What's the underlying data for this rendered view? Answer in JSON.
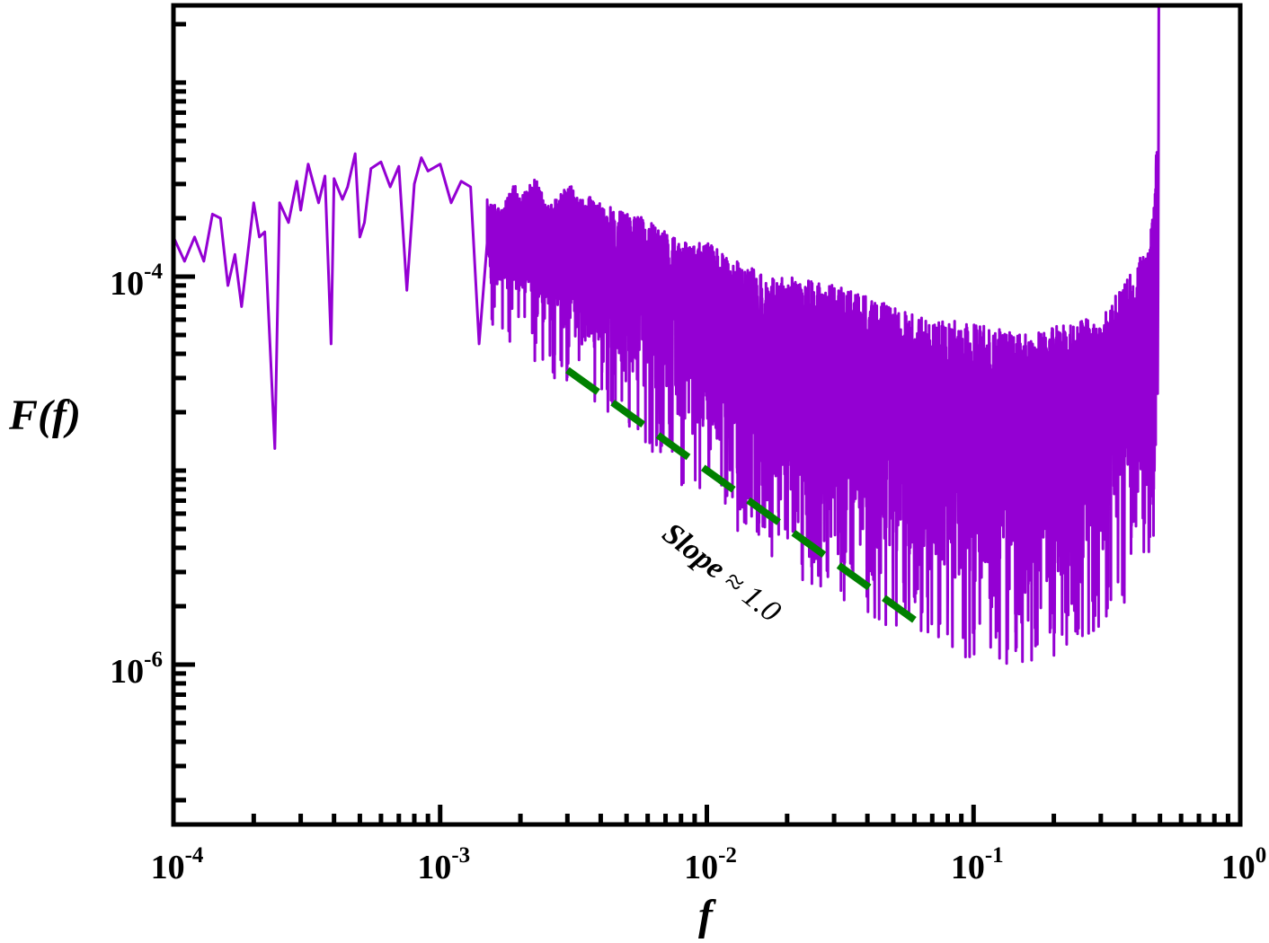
{
  "chart_data": {
    "type": "line",
    "x_scale": "log",
    "y_scale": "log",
    "xlabel": "f",
    "ylabel": "F(f)",
    "xlim": [
      0.0001,
      1
    ],
    "ylim": [
      1.5e-07,
      0.0025
    ],
    "x_ticks": [
      {
        "base": "10",
        "exp": "-4",
        "value": 0.0001
      },
      {
        "base": "10",
        "exp": "-3",
        "value": 0.001
      },
      {
        "base": "10",
        "exp": "-2",
        "value": 0.01
      },
      {
        "base": "10",
        "exp": "-1",
        "value": 0.1
      },
      {
        "base": "10",
        "exp": "0",
        "value": 1
      }
    ],
    "y_ticks": [
      {
        "base": "10",
        "exp": "-4",
        "value": 0.0001
      },
      {
        "base": "10",
        "exp": "-6",
        "value": 1e-06
      }
    ],
    "series": [
      {
        "color": "#9400D3",
        "noisy_upper_values": [
          [
            0.0001,
            0.00016
          ],
          [
            0.00011,
            0.00012
          ],
          [
            0.00012,
            0.00016
          ],
          [
            0.00013,
            0.00012
          ],
          [
            0.00014,
            0.00021
          ],
          [
            0.00015,
            0.0002
          ],
          [
            0.00016,
            9e-05
          ],
          [
            0.00017,
            0.00013
          ],
          [
            0.00018,
            7e-05
          ],
          [
            0.0002,
            0.00024
          ],
          [
            0.00021,
            0.00016
          ],
          [
            0.00022,
            0.00017
          ],
          [
            0.00024,
            1.3e-05
          ],
          [
            0.00025,
            0.00024
          ],
          [
            0.00027,
            0.00019
          ],
          [
            0.00029,
            0.00031
          ],
          [
            0.0003,
            0.00022
          ],
          [
            0.00032,
            0.00038
          ],
          [
            0.00035,
            0.00024
          ],
          [
            0.00037,
            0.00033
          ],
          [
            0.00039,
            4.5e-05
          ],
          [
            0.0004,
            0.00032
          ],
          [
            0.00043,
            0.00025
          ],
          [
            0.00045,
            0.00029
          ],
          [
            0.00048,
            0.00043
          ],
          [
            0.0005,
            0.00016
          ],
          [
            0.00052,
            0.00019
          ],
          [
            0.00055,
            0.00036
          ],
          [
            0.0006,
            0.00039
          ],
          [
            0.00065,
            0.00029
          ],
          [
            0.0007,
            0.00037
          ],
          [
            0.00075,
            8.5e-05
          ],
          [
            0.0008,
            0.0003
          ],
          [
            0.00085,
            0.00041
          ],
          [
            0.0009,
            0.00035
          ],
          [
            0.001,
            0.00038
          ],
          [
            0.0011,
            0.00024
          ],
          [
            0.0012,
            0.00031
          ],
          [
            0.0013,
            0.00029
          ],
          [
            0.0014,
            4.5e-05
          ],
          [
            0.0015,
            0.00025
          ],
          [
            0.0017,
            0.00022
          ],
          [
            0.0019,
            0.00031
          ],
          [
            0.002,
            0.00025
          ],
          [
            0.0023,
            0.00035
          ],
          [
            0.0025,
            0.00023
          ],
          [
            0.003,
            0.0003
          ],
          [
            0.004,
            0.00024
          ],
          [
            0.005,
            0.00021
          ],
          [
            0.006,
            0.0002
          ],
          [
            0.008,
            0.00015
          ],
          [
            0.01,
            0.00015
          ],
          [
            0.013,
            0.00012
          ],
          [
            0.017,
            0.0001
          ],
          [
            0.02,
            0.0001
          ],
          [
            0.03,
            9e-05
          ],
          [
            0.04,
            8e-05
          ],
          [
            0.05,
            7e-05
          ],
          [
            0.07,
            6e-05
          ],
          [
            0.1,
            5.8e-05
          ],
          [
            0.15,
            5e-05
          ],
          [
            0.2,
            5.5e-05
          ],
          [
            0.25,
            6e-05
          ],
          [
            0.3,
            6.5e-05
          ],
          [
            0.4,
            0.00011
          ],
          [
            0.45,
            0.00015
          ],
          [
            0.48,
            0.00028
          ],
          [
            0.49,
            0.0008
          ],
          [
            0.495,
            0.0025
          ]
        ],
        "noisy_lower_values": [
          [
            0.0015,
            9e-05
          ],
          [
            0.002,
            8e-05
          ],
          [
            0.003,
            5e-05
          ],
          [
            0.004,
            4e-05
          ],
          [
            0.005,
            3e-05
          ],
          [
            0.006,
            2.5e-05
          ],
          [
            0.008,
            1.6e-05
          ],
          [
            0.01,
            1.2e-05
          ],
          [
            0.013,
            9e-06
          ],
          [
            0.017,
            7e-06
          ],
          [
            0.02,
            6e-06
          ],
          [
            0.03,
            4.5e-06
          ],
          [
            0.04,
            3.5e-06
          ],
          [
            0.05,
            3e-06
          ],
          [
            0.07,
            2.5e-06
          ],
          [
            0.1,
            2e-06
          ],
          [
            0.15,
            2e-06
          ],
          [
            0.2,
            2.2e-06
          ],
          [
            0.25,
            2.5e-06
          ],
          [
            0.3,
            3e-06
          ],
          [
            0.4,
            4.5e-06
          ],
          [
            0.45,
            6e-06
          ],
          [
            0.49,
            1.2e-05
          ]
        ]
      }
    ],
    "reference_line": {
      "color": "#008000",
      "style": "dashed",
      "points": [
        [
          0.003,
          3.3e-05
        ],
        [
          0.06,
          1.7e-06
        ]
      ]
    },
    "annotations": [
      {
        "text": "Slope ≈ 1.0",
        "italic_part": "Slope",
        "rest": " ≈ 1.0"
      }
    ],
    "grid": false,
    "legend": "none"
  }
}
